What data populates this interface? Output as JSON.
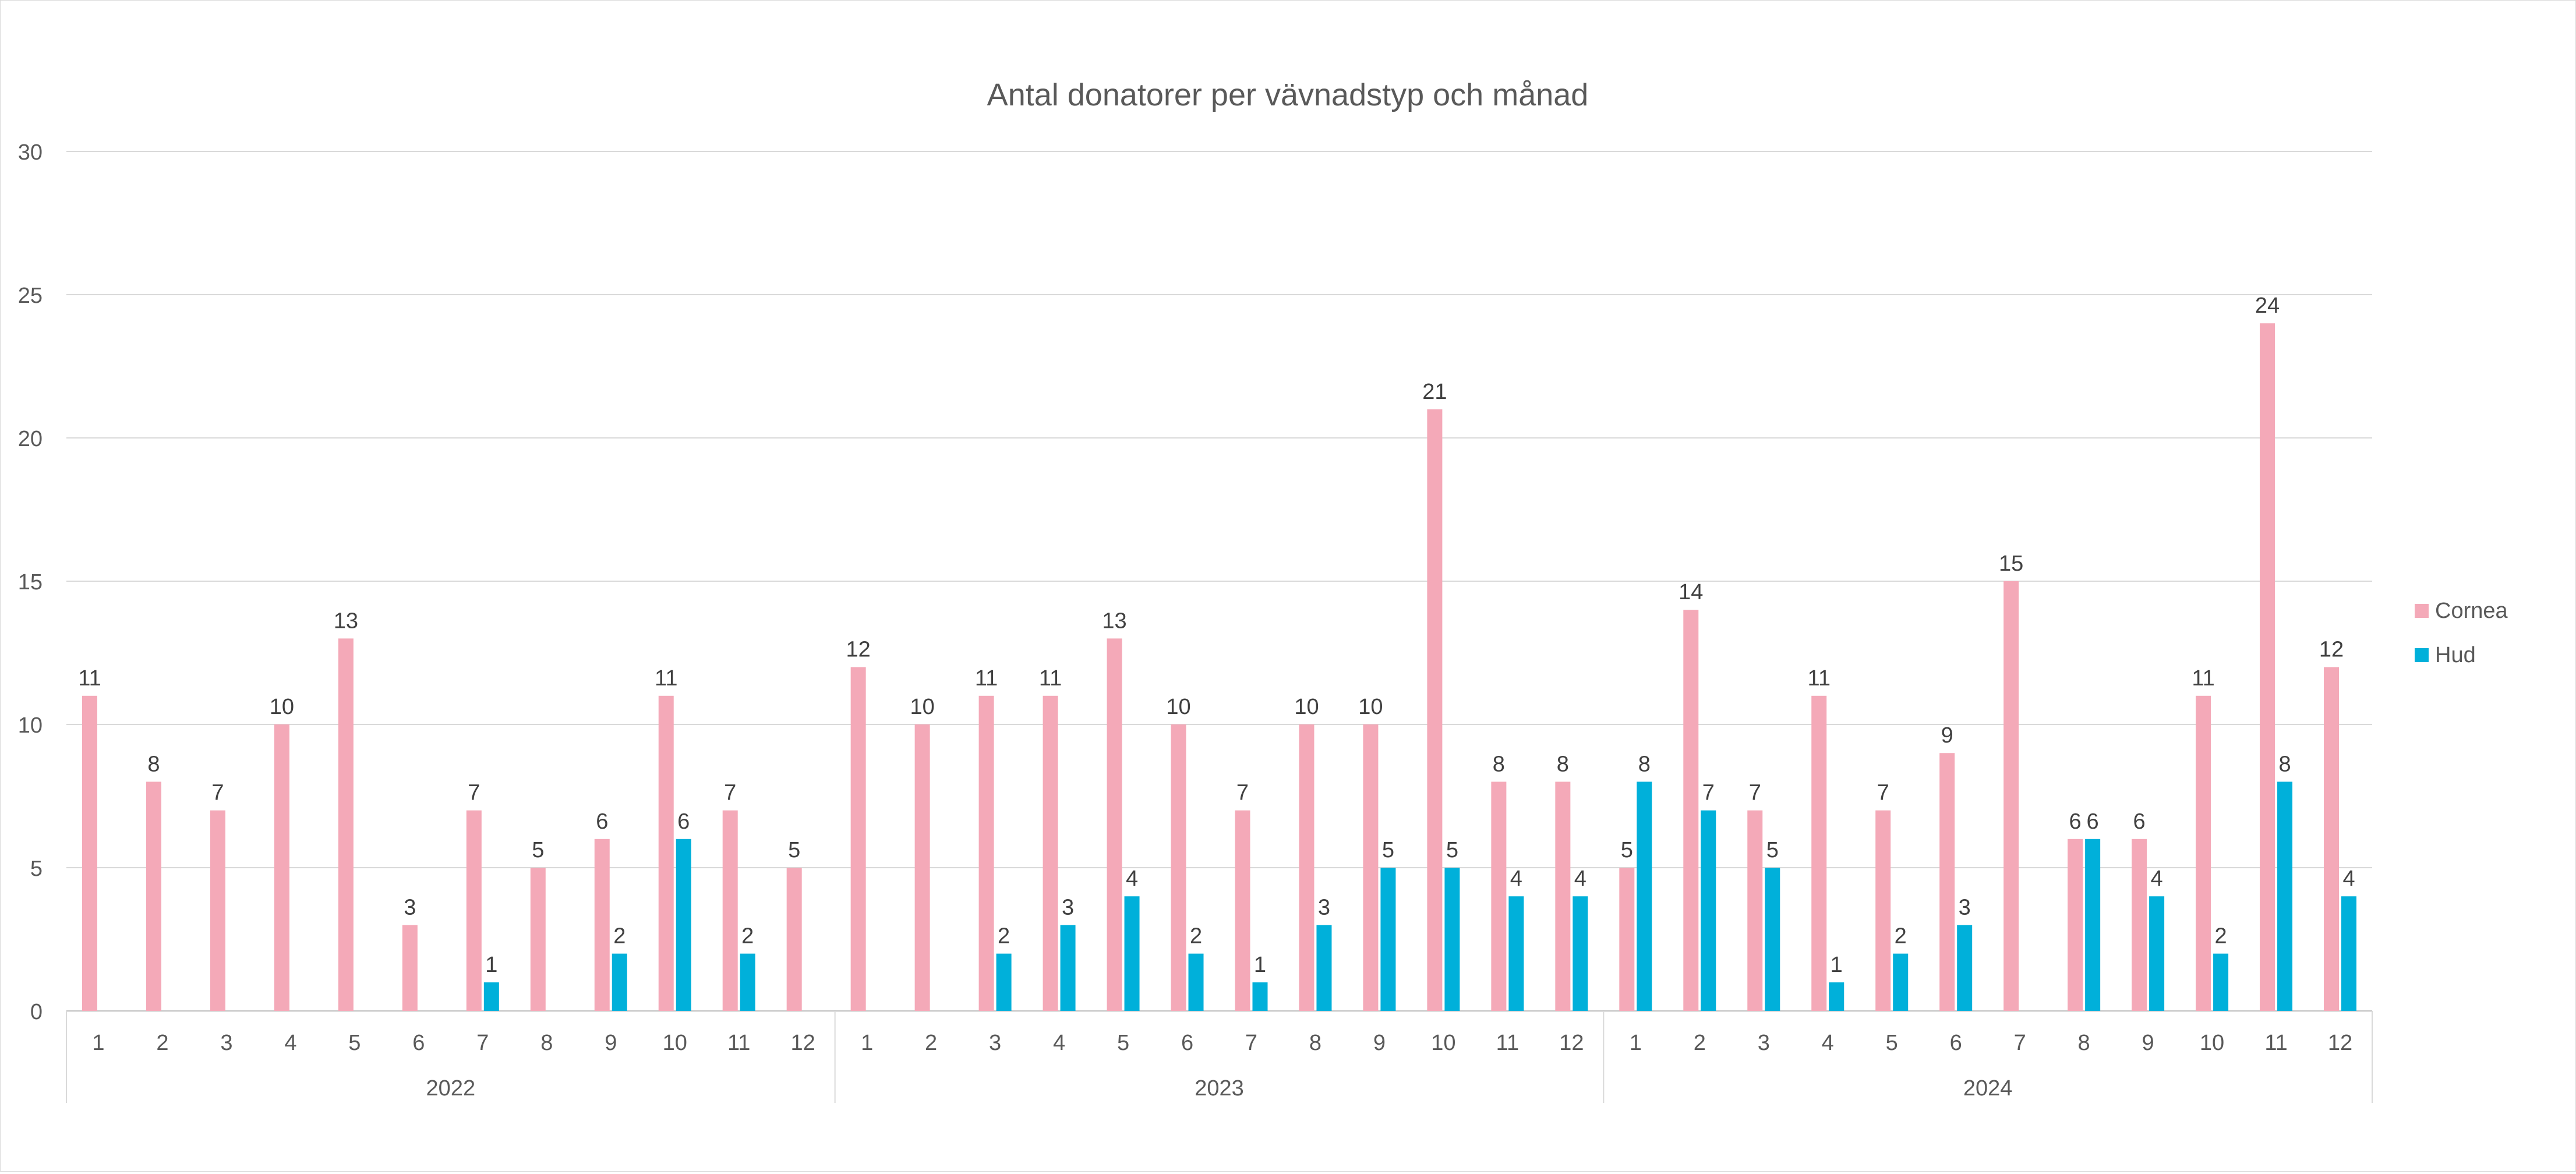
{
  "chart_data": {
    "type": "bar",
    "title": "Antal donatorer per vävnadstyp och månad",
    "xlabel": "",
    "ylabel": "",
    "ylim": [
      0,
      30
    ],
    "yticks": [
      0,
      5,
      10,
      15,
      20,
      25,
      30
    ],
    "grid": true,
    "legend_position": "right",
    "groups": [
      {
        "label": "2022",
        "months": [
          "1",
          "2",
          "3",
          "4",
          "5",
          "6",
          "7",
          "8",
          "9",
          "10",
          "11",
          "12"
        ]
      },
      {
        "label": "2023",
        "months": [
          "1",
          "2",
          "3",
          "4",
          "5",
          "6",
          "7",
          "8",
          "9",
          "10",
          "11",
          "12"
        ]
      },
      {
        "label": "2024",
        "months": [
          "1",
          "2",
          "3",
          "4",
          "5",
          "6",
          "7",
          "8",
          "9",
          "10",
          "11",
          "12"
        ]
      }
    ],
    "series": [
      {
        "name": "Cornea",
        "color": "#f4a9b8",
        "values": [
          11,
          8,
          7,
          10,
          13,
          3,
          7,
          5,
          6,
          11,
          7,
          5,
          12,
          10,
          11,
          11,
          13,
          10,
          7,
          10,
          10,
          21,
          8,
          8,
          5,
          14,
          7,
          11,
          7,
          9,
          15,
          6,
          6,
          11,
          24,
          12
        ]
      },
      {
        "name": "Hud",
        "color": "#00b0da",
        "values": [
          null,
          null,
          null,
          null,
          null,
          null,
          1,
          null,
          2,
          6,
          2,
          null,
          null,
          null,
          2,
          3,
          4,
          2,
          1,
          3,
          5,
          5,
          4,
          4,
          8,
          7,
          5,
          1,
          2,
          3,
          null,
          6,
          4,
          2,
          8,
          4
        ]
      }
    ]
  }
}
